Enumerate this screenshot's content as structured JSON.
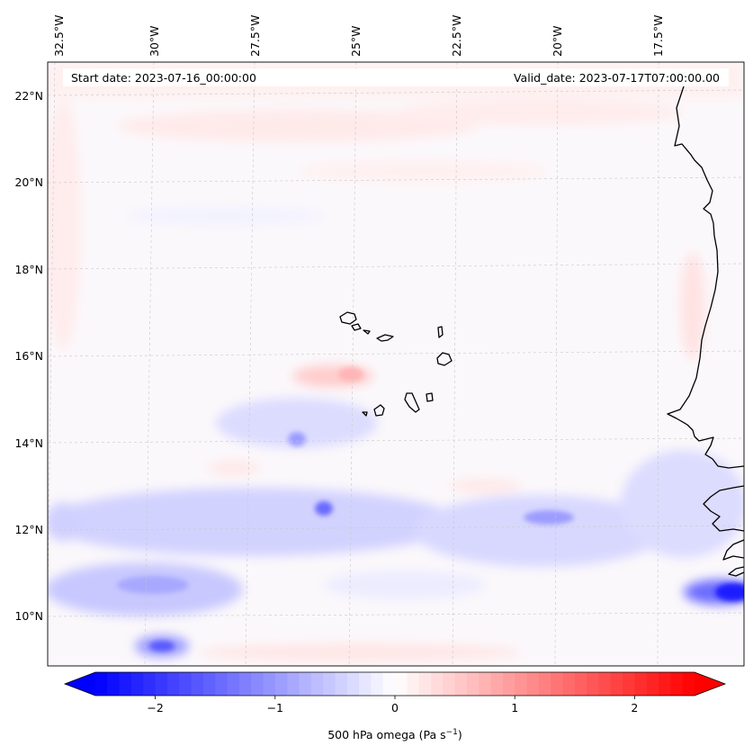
{
  "header": {
    "start_date": "Start date: 2023-07-16_00:00:00",
    "valid_date": "Valid_date: 2023-07-17T07:00:00.00"
  },
  "map": {
    "lon_labels": [
      "32.5°W",
      "30°W",
      "27.5°W",
      "25°W",
      "22.5°W",
      "20°W",
      "17.5°W"
    ],
    "lat_labels": [
      "22°N",
      "20°N",
      "18°N",
      "16°N",
      "14°N",
      "12°N",
      "10°N"
    ],
    "lon_range": [
      -32.8,
      -15.4
    ],
    "lat_range": [
      8.9,
      22.8
    ]
  },
  "colorbar": {
    "tick_labels": [
      "−2",
      "−1",
      "0",
      "1",
      "2"
    ],
    "ticks": [
      -2,
      -1,
      0,
      1,
      2
    ],
    "range": [
      -2.5,
      2.5
    ],
    "extend": "both",
    "label_text": "500 hPa omega (Pa s",
    "label_sup": "−1",
    "label_close": ")",
    "colors": {
      "min": "#0000ff",
      "mid": "#ffffff",
      "max": "#ff0000"
    }
  }
}
